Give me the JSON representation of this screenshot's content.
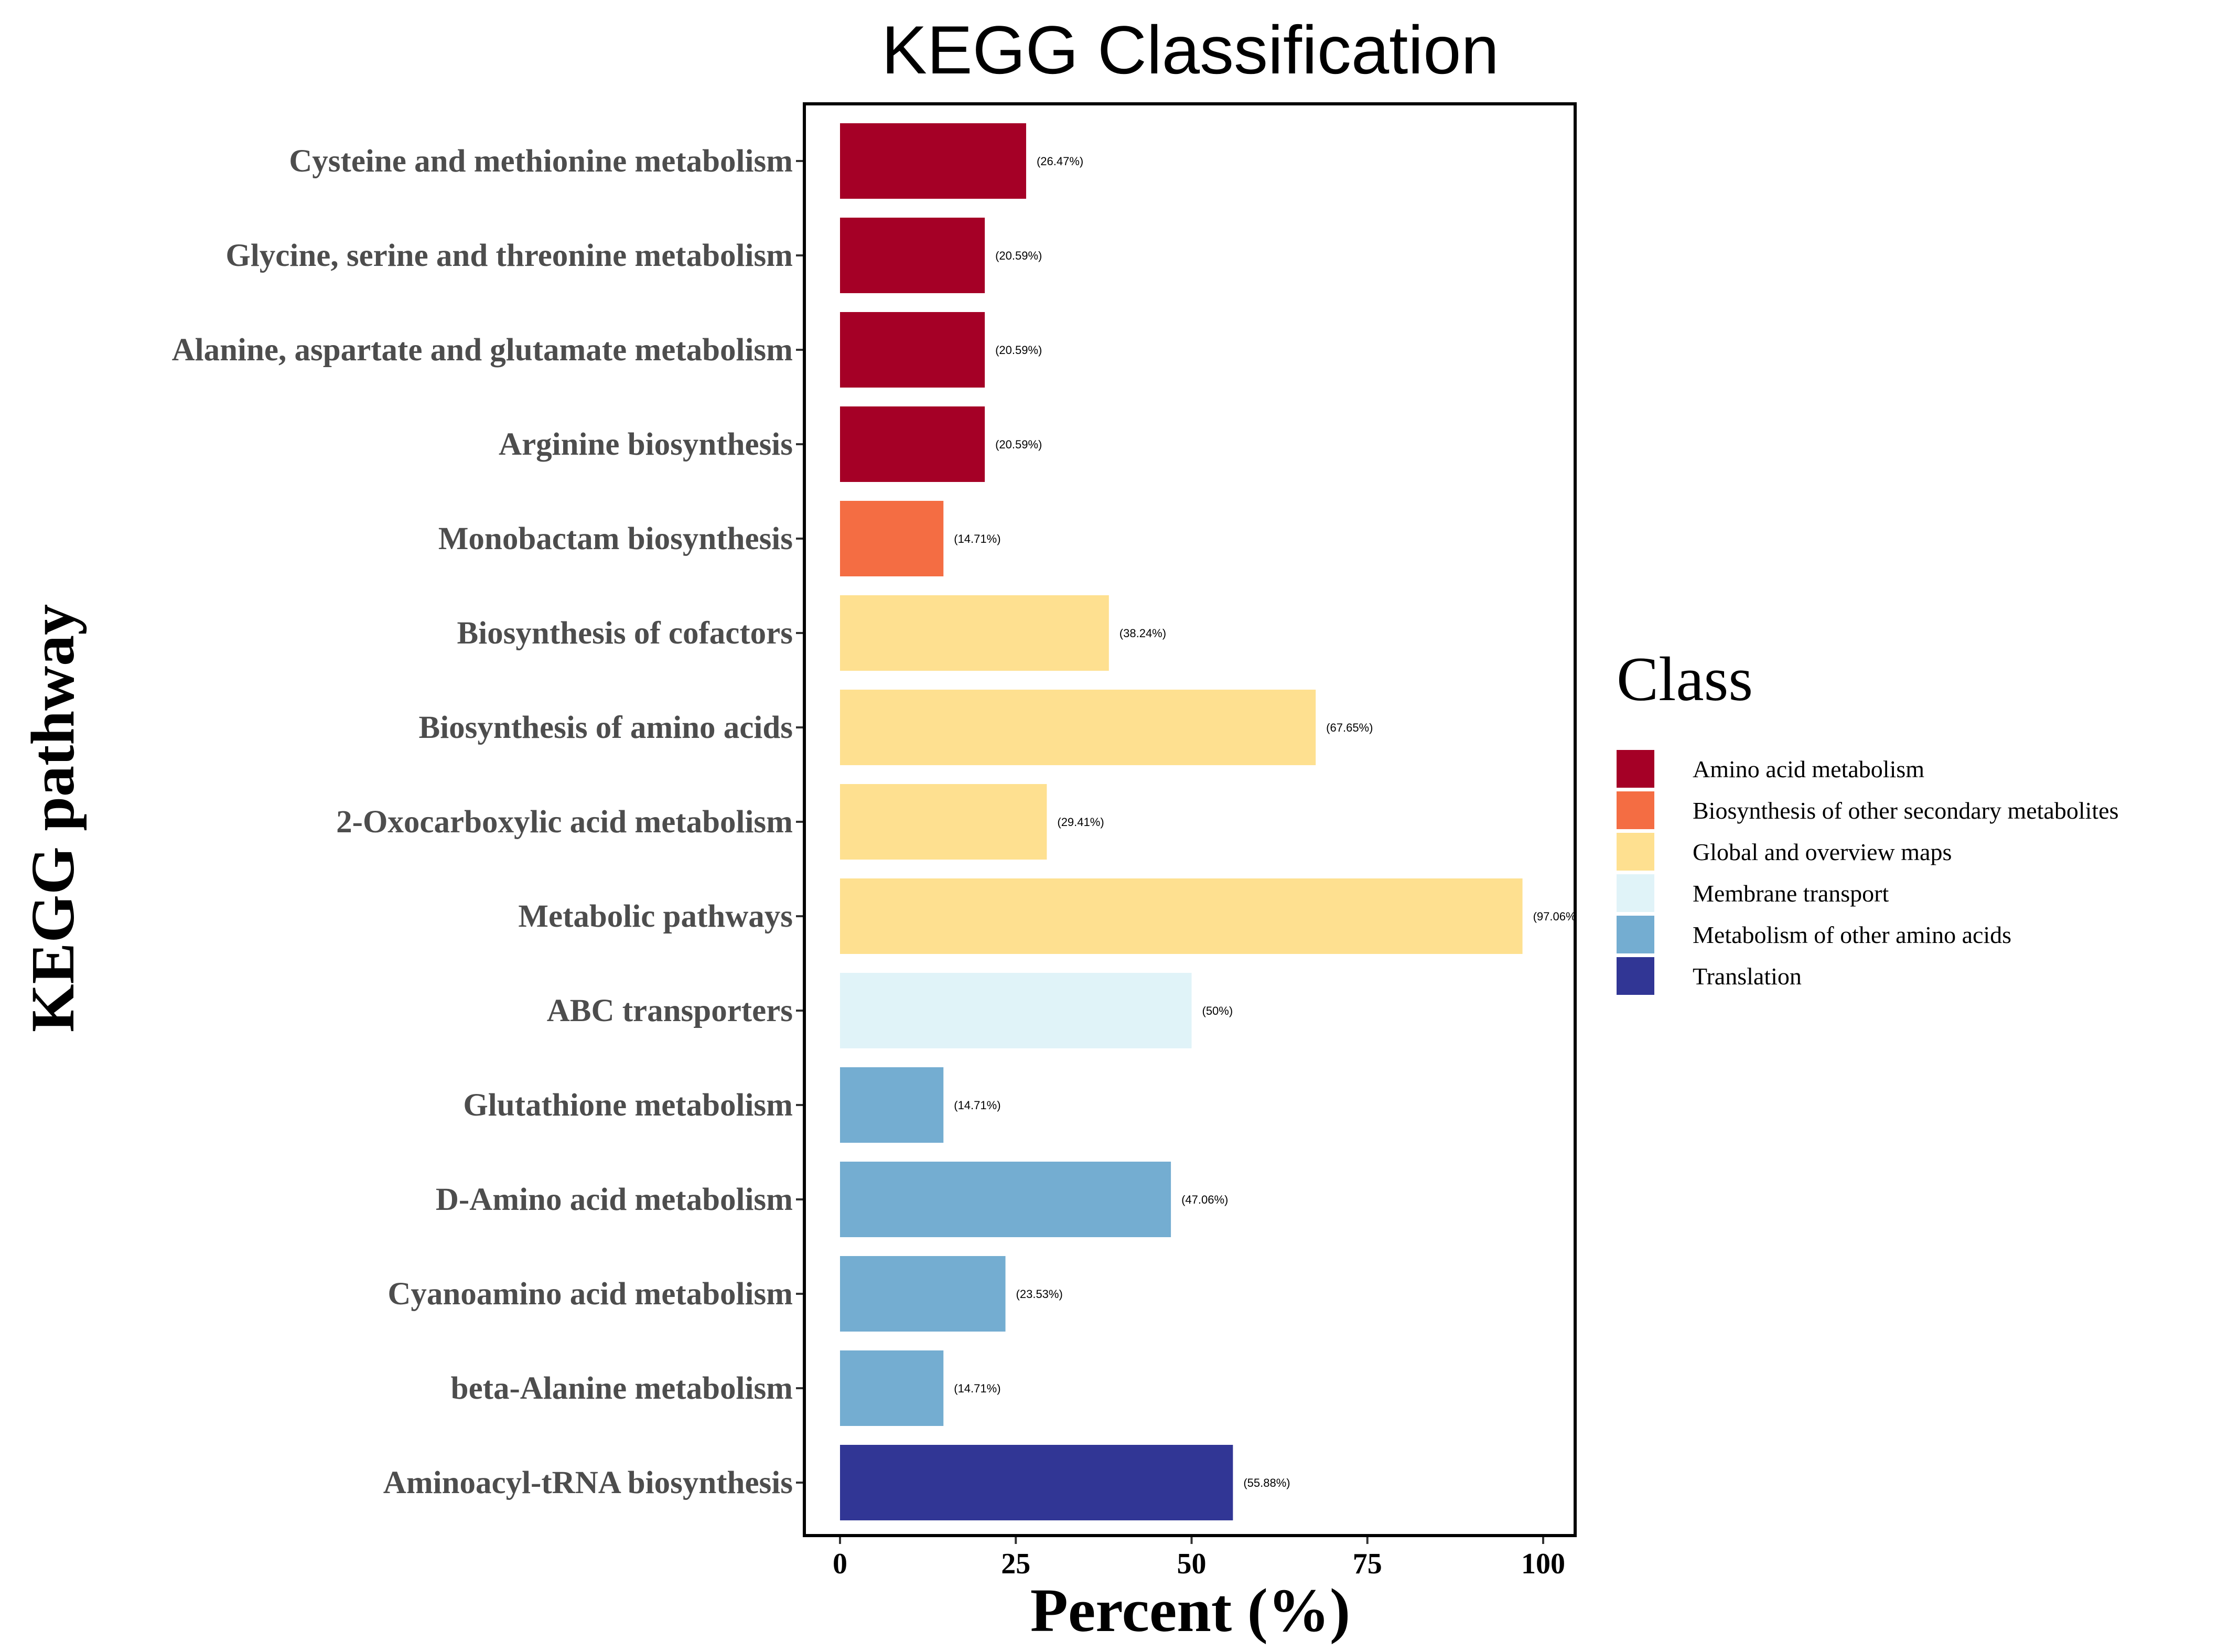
{
  "chart_data": {
    "type": "bar",
    "orientation": "horizontal",
    "title": "KEGG Classification",
    "xlabel": "Percent (%)",
    "ylabel": "KEGG pathway",
    "xlim": [
      0,
      100
    ],
    "xticks": [
      "0",
      "25",
      "50",
      "75",
      "100"
    ],
    "grid": false,
    "legend_position": "right",
    "legend_title": "Class",
    "classes": [
      {
        "name": "Amino acid metabolism",
        "color": "#A50026"
      },
      {
        "name": "Biosynthesis of other secondary metabolites",
        "color": "#F46D43"
      },
      {
        "name": "Global and overview maps",
        "color": "#FEE090"
      },
      {
        "name": "Membrane transport",
        "color": "#E0F3F8"
      },
      {
        "name": "Metabolism of other amino acids",
        "color": "#74ADD1"
      },
      {
        "name": "Translation",
        "color": "#313695"
      }
    ],
    "categories": [
      "Cysteine and methionine metabolism",
      "Glycine, serine and threonine metabolism",
      "Alanine, aspartate and glutamate metabolism",
      "Arginine biosynthesis",
      "Monobactam biosynthesis",
      "Biosynthesis of cofactors",
      "Biosynthesis of amino acids",
      "2-Oxocarboxylic acid metabolism",
      "Metabolic pathways",
      "ABC transporters",
      "Glutathione metabolism",
      "D-Amino acid metabolism",
      "Cyanoamino acid metabolism",
      "beta-Alanine metabolism",
      "Aminoacyl-tRNA biosynthesis"
    ],
    "values": [
      26.47,
      20.59,
      20.59,
      20.59,
      14.71,
      38.24,
      67.65,
      29.41,
      97.06,
      50,
      14.71,
      47.06,
      23.53,
      14.71,
      55.88
    ],
    "value_labels": [
      "(26.47%)",
      "(20.59%)",
      "(20.59%)",
      "(20.59%)",
      "(14.71%)",
      "(38.24%)",
      "(67.65%)",
      "(29.41%)",
      "(97.06%",
      "(50%)",
      "(14.71%)",
      "(47.06%)",
      "(23.53%)",
      "(14.71%)",
      "(55.88%)"
    ],
    "class_index": [
      0,
      0,
      0,
      0,
      1,
      2,
      2,
      2,
      2,
      3,
      4,
      4,
      4,
      4,
      5
    ]
  }
}
